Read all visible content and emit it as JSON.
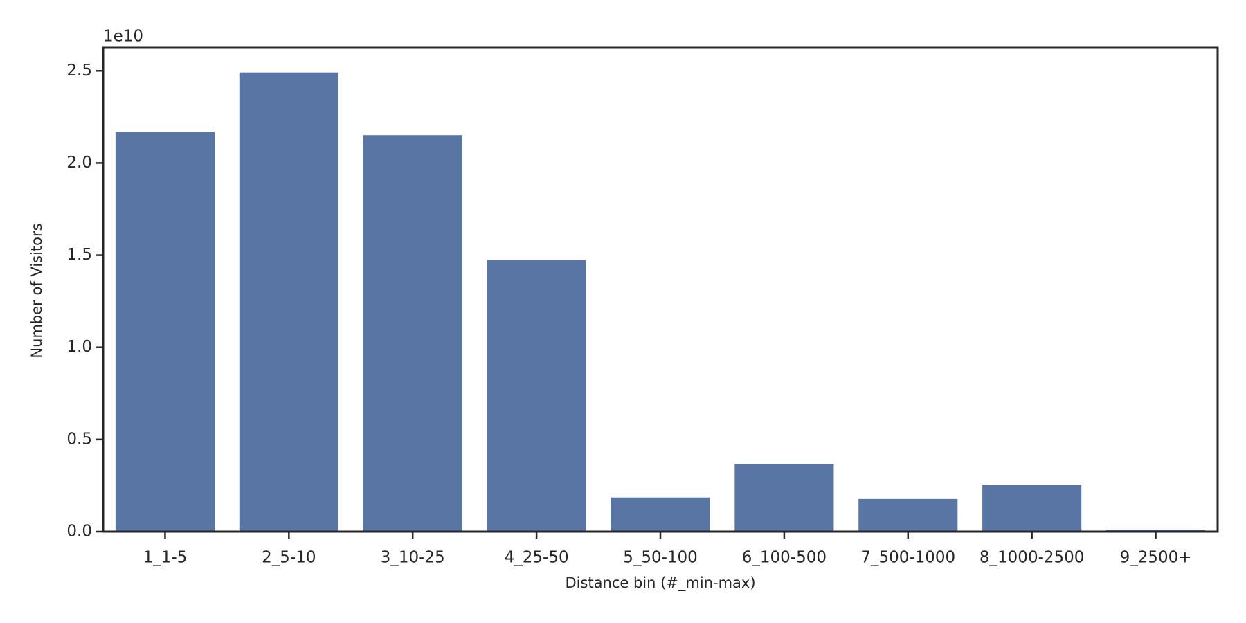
{
  "chart_data": {
    "type": "bar",
    "x_label": "Distance bin (#_min-max)",
    "y_label": "Number of Visitors",
    "y_offset_label": "1e10",
    "categories": [
      "1_1-5",
      "2_5-10",
      "3_10-25",
      "4_25-50",
      "5_50-100",
      "6_100-500",
      "7_500-1000",
      "8_1000-2500",
      "9_2500+"
    ],
    "values": [
      2.168,
      2.491,
      2.151,
      1.474,
      0.185,
      0.366,
      0.177,
      0.254,
      0.009
    ],
    "color": "#5975a4",
    "ylim": [
      0,
      2.625
    ],
    "yticks": [
      {
        "value": 0,
        "label": "0.0"
      },
      0.5,
      {
        "value": 1,
        "label": "1.0"
      },
      1.5,
      {
        "value": 2,
        "label": "2.0"
      },
      2.5
    ],
    "grid": false
  }
}
